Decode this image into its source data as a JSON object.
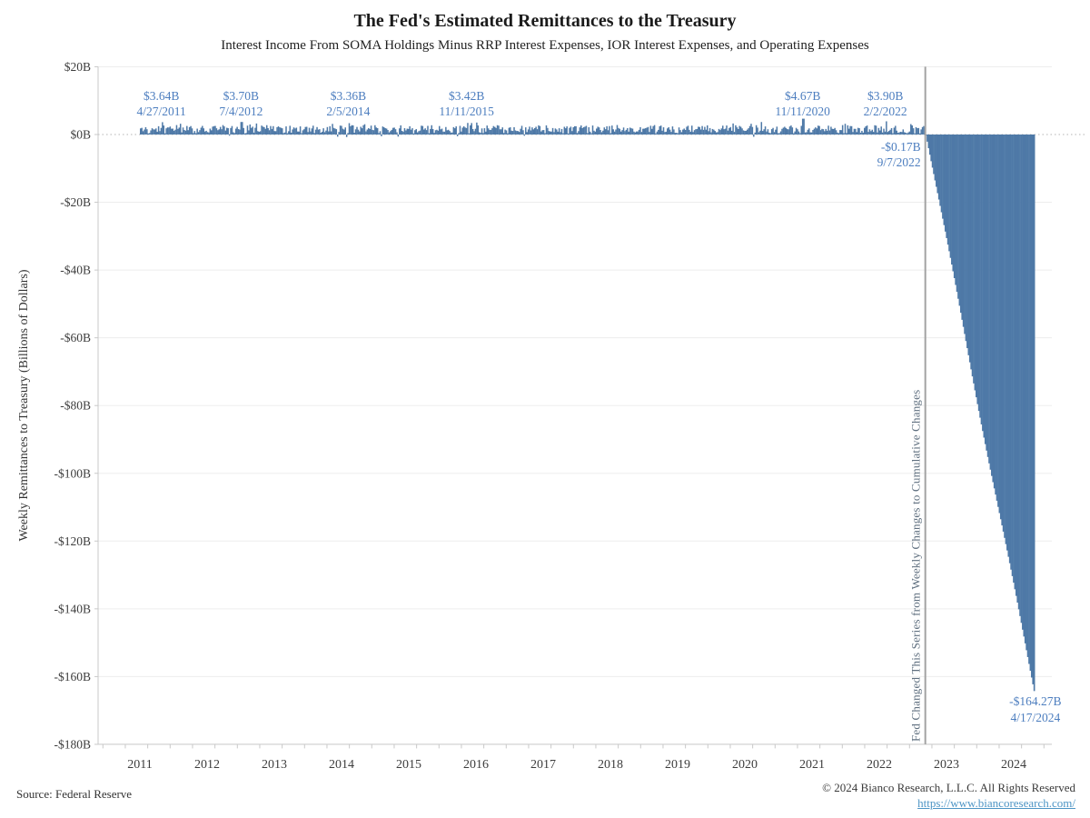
{
  "header": {
    "title": "The Fed's Estimated Remittances to the Treasury",
    "subtitle": "Interest Income From SOMA Holdings Minus RRP Interest Expenses, IOR Interest Expenses, and Operating Expenses"
  },
  "footer": {
    "source": "Source: Federal Reserve",
    "copyright": "© 2024 Bianco Research, L.L.C. All Rights Reserved",
    "link": "https://www.biancoresearch.com/"
  },
  "chart_data": {
    "type": "bar",
    "title": "The Fed's Estimated Remittances to the Treasury",
    "subtitle": "Interest Income From SOMA Holdings Minus RRP Interest Expenses, IOR Interest Expenses, and Operating Expenses",
    "ylabel": "Weekly Remittances to Treasury (Billions of Dollars)",
    "xlabel": "",
    "ylim": [
      -180,
      20
    ],
    "y_tick_step": 20,
    "y_ticks": [
      20,
      0,
      -20,
      -40,
      -60,
      -80,
      -100,
      -120,
      -140,
      -160,
      -180
    ],
    "y_tick_labels": [
      "$20B",
      "$0B",
      "-$20B",
      "-$40B",
      "-$60B",
      "-$80B",
      "-$100B",
      "-$120B",
      "-$140B",
      "-$160B",
      "-$180B"
    ],
    "x_year_labels": [
      "2011",
      "2012",
      "2013",
      "2014",
      "2015",
      "2016",
      "2017",
      "2018",
      "2019",
      "2020",
      "2021",
      "2022",
      "2023",
      "2024"
    ],
    "grid": true,
    "legend": "none",
    "series_description": "Weekly positive remittances of roughly $1B-$5B from 2011 through mid-2022, turning negative on 9/7/2022 and shown thereafter as a cumulative deficit declining approximately linearly to -$164.27B on 4/17/2024",
    "positive_period": {
      "start_t": 2011.0,
      "end_t": 2022.685,
      "typical_range": [
        0.3,
        2.8
      ],
      "units": "billions of dollars per week"
    },
    "cumulative_period": {
      "start_t": 2022.685,
      "end_t": 2024.295,
      "start_value": -0.17,
      "end_value": -164.27,
      "shape": "approximately linear cumulative decline"
    },
    "annotations": [
      {
        "value_label": "$3.64B",
        "date_label": "4/27/2011",
        "t": 2011.32,
        "value": 3.64,
        "anchor": "above"
      },
      {
        "value_label": "$3.70B",
        "date_label": "7/4/2012",
        "t": 2012.505,
        "value": 3.7,
        "anchor": "above"
      },
      {
        "value_label": "$3.36B",
        "date_label": "2/5/2014",
        "t": 2014.1,
        "value": 3.36,
        "anchor": "above"
      },
      {
        "value_label": "$3.42B",
        "date_label": "11/11/2015",
        "t": 2015.86,
        "value": 3.42,
        "anchor": "above"
      },
      {
        "value_label": "$4.67B",
        "date_label": "11/11/2020",
        "t": 2020.86,
        "value": 4.67,
        "anchor": "above"
      },
      {
        "value_label": "$3.90B",
        "date_label": "2/2/2022",
        "t": 2022.09,
        "value": 3.9,
        "anchor": "above"
      },
      {
        "value_label": "-$0.17B",
        "date_label": "9/7/2022",
        "t": 2022.685,
        "value": -0.17,
        "anchor": "below-left"
      },
      {
        "value_label": "-$164.27B",
        "date_label": "4/17/2024",
        "t": 2024.295,
        "value": -164.27,
        "anchor": "below"
      }
    ],
    "event_line": {
      "t": 2022.685,
      "label": "Fed Changed This Series from Weekly Changes to Cumulative Changes"
    },
    "colors": {
      "bar": "#4e79a7",
      "annotation_text": "#4d7ebf",
      "event_line": "#a3a3a3",
      "event_text": "#5f6f7f",
      "grid": "#ededed",
      "zero_line": "#b5b5b5",
      "axis": "#c9c9c9",
      "tick_label": "#3d3d3d",
      "axis_title": "#333333"
    }
  }
}
